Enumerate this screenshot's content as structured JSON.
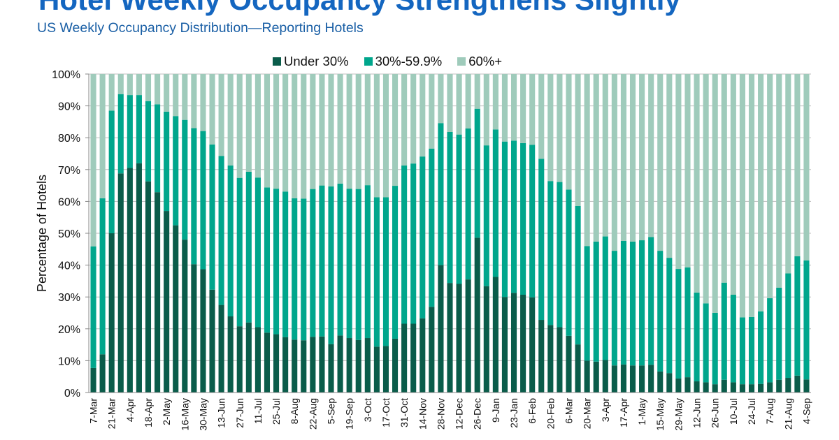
{
  "title": "Hotel Weekly Occupancy Strengthens Slightly",
  "subtitle": "US Weekly Occupancy Distribution—Reporting Hotels",
  "chart_data": {
    "type": "bar",
    "stacked": true,
    "ylabel": "Percentage of Hotels",
    "ylim": [
      0,
      100
    ],
    "y_ticks": [
      "0%",
      "10%",
      "20%",
      "30%",
      "40%",
      "50%",
      "60%",
      "70%",
      "80%",
      "90%",
      "100%"
    ],
    "grid": true,
    "legend_position": "top",
    "x_tick_labels": [
      "7-Mar",
      "21-Mar",
      "4-Apr",
      "18-Apr",
      "2-May",
      "16-May",
      "30-May",
      "13-Jun",
      "27-Jun",
      "11-Jul",
      "25-Jul",
      "8-Aug",
      "22-Aug",
      "5-Sep",
      "19-Sep",
      "3-Oct",
      "17-Oct",
      "31-Oct",
      "14-Nov",
      "28-Nov",
      "12-Dec",
      "26-Dec",
      "9-Jan",
      "23-Jan",
      "6-Feb",
      "20-Feb",
      "6-Mar",
      "20-Mar",
      "3-Apr",
      "17-Apr",
      "1-May",
      "15-May",
      "29-May",
      "12-Jun",
      "26-Jun",
      "10-Jul",
      "24-Jul",
      "7-Aug",
      "21-Aug",
      "4-Sep"
    ],
    "x_tick_every_n_bars": 2,
    "series": [
      {
        "name": "Under 30%",
        "color": "#0a5c4a",
        "values": [
          7.7,
          12,
          50,
          68.8,
          70.5,
          72,
          66.3,
          62.9,
          57,
          52.5,
          48,
          40.3,
          38.7,
          32.3,
          27.5,
          23.9,
          20.8,
          22,
          20.5,
          18.8,
          18.3,
          17.4,
          16.6,
          16.4,
          17.5,
          17.6,
          15.2,
          17.9,
          17.1,
          16.5,
          17.1,
          14.4,
          14.6,
          16.9,
          21.6,
          21.6,
          23.3,
          26.9,
          40,
          34.4,
          34.1,
          35.5,
          48.6,
          33.4,
          36.3,
          30,
          31.3,
          30.7,
          29.9,
          22.8,
          21.2,
          20.5,
          17.8,
          15.1,
          10,
          9.7,
          10.2,
          8.5,
          8.8,
          8.5,
          8.5,
          8.7,
          6.6,
          6.1,
          4.4,
          4.8,
          3.5,
          3.2,
          2.6,
          4,
          3.2,
          2.6,
          2.6,
          2.7,
          3.2,
          4,
          4.6,
          5.3,
          4.1
        ]
      },
      {
        "name": "30%-59.9%",
        "color": "#00a68c",
        "values": [
          38.2,
          49,
          38.5,
          24.9,
          22.9,
          21.4,
          25.2,
          27.6,
          31.2,
          34.3,
          37.6,
          42.7,
          43.4,
          45.6,
          46.8,
          47.4,
          46.6,
          47.3,
          47,
          45.6,
          45.7,
          45.7,
          44.4,
          44.5,
          46.4,
          47.4,
          49.5,
          47.7,
          46.9,
          47.4,
          48,
          46.9,
          46.7,
          48,
          49.7,
          50.3,
          50.8,
          49.7,
          44.6,
          47.4,
          46.9,
          47.4,
          40.5,
          44.2,
          46.3,
          48.8,
          47.8,
          47.6,
          47.9,
          50.6,
          45.2,
          45.6,
          45.9,
          43.5,
          36,
          37.7,
          38.8,
          36,
          38.8,
          38.9,
          39.3,
          40.1,
          37.9,
          36.2,
          34.4,
          34.5,
          27.9,
          24.8,
          22.4,
          30.5,
          27.5,
          21,
          21.1,
          22.8,
          26.4,
          28.9,
          32.8,
          37.5,
          37.4
        ]
      },
      {
        "name": "60%+",
        "color": "#9fcbbb",
        "values": [
          54.1,
          39,
          11.5,
          6.3,
          6.6,
          6.6,
          8.5,
          9.5,
          11.8,
          13.2,
          14.4,
          17,
          17.9,
          22.1,
          25.7,
          28.7,
          32.6,
          30.7,
          32.5,
          35.6,
          36,
          36.9,
          39,
          39.1,
          36.1,
          35,
          35.3,
          34.4,
          36,
          36.1,
          34.9,
          38.7,
          38.7,
          35.1,
          28.7,
          28.1,
          25.9,
          23.4,
          15.4,
          18.2,
          19,
          17.1,
          10.9,
          22.4,
          17.4,
          21.2,
          20.9,
          21.7,
          22.2,
          26.6,
          33.6,
          33.9,
          36.3,
          41.4,
          54,
          52.6,
          51,
          55.5,
          52.4,
          52.6,
          52.2,
          51.2,
          55.5,
          57.7,
          61.2,
          60.7,
          68.6,
          72,
          75,
          65.5,
          69.3,
          76.4,
          76.3,
          74.5,
          70.4,
          67.1,
          62.6,
          57.2,
          58.5
        ]
      }
    ]
  }
}
